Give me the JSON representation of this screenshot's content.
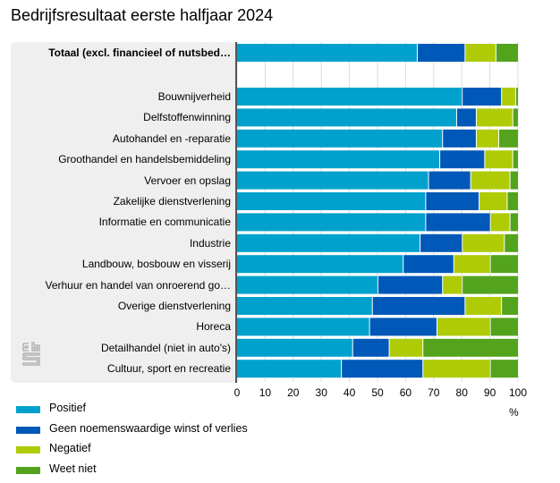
{
  "header": {
    "title": "Bedrijfsresultaat eerste halfjaar 2024"
  },
  "logo": {
    "icon": "cbs-logo-icon"
  },
  "chart_data": {
    "type": "bar",
    "orientation": "horizontal",
    "stacked": true,
    "title": "Bedrijfsresultaat eerste halfjaar 2024",
    "xlabel": "%",
    "ylabel": "",
    "xlim": [
      0,
      100
    ],
    "xticks": [
      "0",
      "10",
      "20",
      "30",
      "40",
      "50",
      "60",
      "70",
      "80",
      "90",
      "100"
    ],
    "grid": true,
    "legend_position": "bottom-left",
    "categories": [
      "Totaal (excl. financieel of nutsbed…",
      "",
      "Bouwnijverheid",
      "Delfstoffenwinning",
      "Autohandel en -reparatie",
      "Groothandel en handelsbemiddeling",
      "Vervoer en opslag",
      "Zakelijke dienstverlening",
      "Informatie en communicatie",
      "Industrie",
      "Landbouw, bosbouw en visserij",
      "Verhuur en handel van onroerend go…",
      "Overige dienstverlening",
      "Horeca",
      "Detailhandel (niet in auto's)",
      "Cultuur, sport en recreatie"
    ],
    "bold_categories": [
      0
    ],
    "series": [
      {
        "name": "Positief",
        "color": "#00a1cd",
        "values": [
          64,
          null,
          80,
          78,
          73,
          72,
          68,
          67,
          67,
          65,
          59,
          50,
          48,
          47,
          41,
          37
        ]
      },
      {
        "name": "Geen noemenswaardige winst of verlies",
        "color": "#0058b8",
        "values": [
          17,
          null,
          14,
          7,
          12,
          16,
          15,
          19,
          23,
          15,
          18,
          23,
          33,
          24,
          13,
          29
        ]
      },
      {
        "name": "Negatief",
        "color": "#afcb05",
        "values": [
          11,
          null,
          5,
          13,
          8,
          10,
          14,
          10,
          7,
          15,
          13,
          7,
          13,
          19,
          12,
          24
        ]
      },
      {
        "name": "Weet niet",
        "color": "#53a31d",
        "values": [
          8,
          null,
          1,
          2,
          7,
          2,
          3,
          4,
          3,
          5,
          10,
          20,
          6,
          10,
          34,
          10
        ]
      }
    ]
  }
}
